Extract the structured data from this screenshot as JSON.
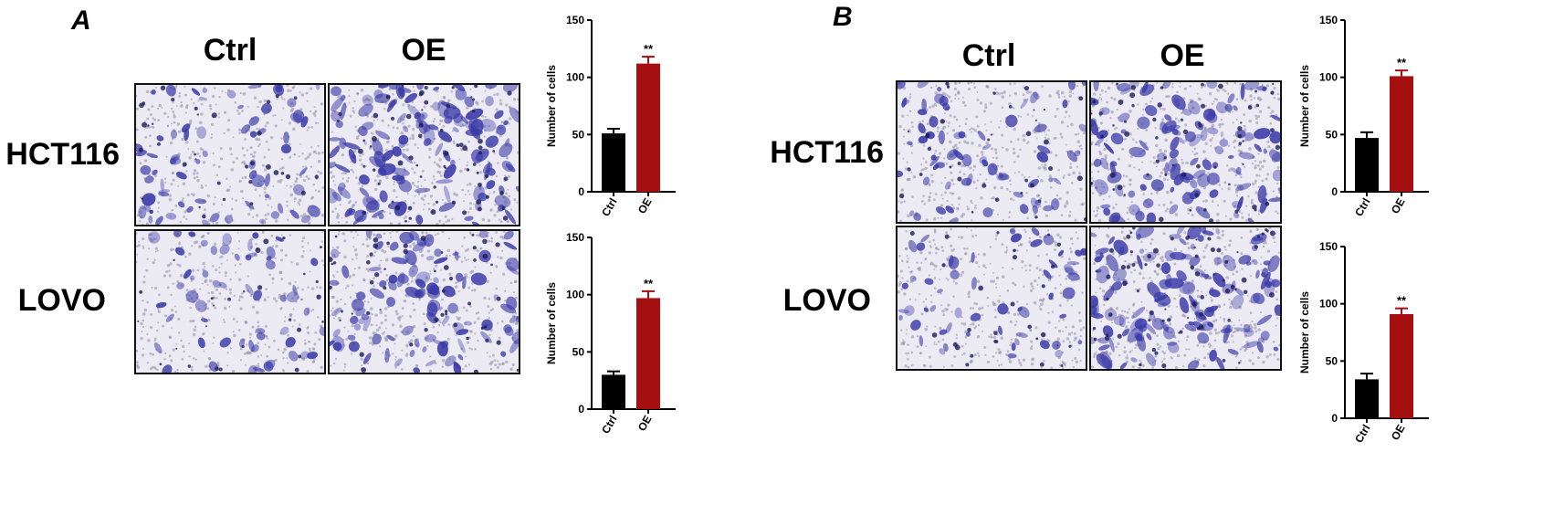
{
  "panels": [
    {
      "letter": "A",
      "col_labels": [
        "Ctrl",
        "OE"
      ],
      "row_labels": [
        "HCT116",
        "LOVO"
      ]
    },
    {
      "letter": "B",
      "col_labels": [
        "Ctrl",
        "OE"
      ],
      "row_labels": [
        "HCT116",
        "LOVO"
      ]
    }
  ],
  "micrographs": [
    {
      "panel": "A",
      "row": "HCT116",
      "col": "Ctrl",
      "stain_density": 0.35
    },
    {
      "panel": "A",
      "row": "HCT116",
      "col": "OE",
      "stain_density": 0.8
    },
    {
      "panel": "A",
      "row": "LOVO",
      "col": "Ctrl",
      "stain_density": 0.25
    },
    {
      "panel": "A",
      "row": "LOVO",
      "col": "OE",
      "stain_density": 0.6
    },
    {
      "panel": "B",
      "row": "HCT116",
      "col": "Ctrl",
      "stain_density": 0.35
    },
    {
      "panel": "B",
      "row": "HCT116",
      "col": "OE",
      "stain_density": 0.7
    },
    {
      "panel": "B",
      "row": "LOVO",
      "col": "Ctrl",
      "stain_density": 0.25
    },
    {
      "panel": "B",
      "row": "LOVO",
      "col": "OE",
      "stain_density": 0.85
    }
  ],
  "colors": {
    "ctrl_bar": "#000000",
    "oe_bar": "#a50f0f",
    "stain": "#3a3aa8",
    "background_field": "#eceaf3"
  },
  "chart_data": [
    {
      "type": "bar",
      "panel": "A",
      "row": "HCT116",
      "categories": [
        "Ctrl",
        "OE"
      ],
      "values": [
        51,
        112
      ],
      "errors": [
        4,
        6
      ],
      "significance": "**",
      "ylabel": "Number of cells",
      "ylim": [
        0,
        150
      ],
      "yticks": [
        0,
        50,
        100,
        150
      ]
    },
    {
      "type": "bar",
      "panel": "A",
      "row": "LOVO",
      "categories": [
        "Ctrl",
        "OE"
      ],
      "values": [
        30,
        97
      ],
      "errors": [
        3,
        6
      ],
      "significance": "**",
      "ylabel": "Number of cells",
      "ylim": [
        0,
        150
      ],
      "yticks": [
        0,
        50,
        100,
        150
      ]
    },
    {
      "type": "bar",
      "panel": "B",
      "row": "HCT116",
      "categories": [
        "Ctrl",
        "OE"
      ],
      "values": [
        47,
        101
      ],
      "errors": [
        5,
        5
      ],
      "significance": "**",
      "ylabel": "Number of cells",
      "ylim": [
        0,
        150
      ],
      "yticks": [
        0,
        50,
        100,
        150
      ]
    },
    {
      "type": "bar",
      "panel": "B",
      "row": "LOVO",
      "categories": [
        "Ctrl",
        "OE"
      ],
      "values": [
        34,
        91
      ],
      "errors": [
        5,
        5
      ],
      "significance": "**",
      "ylabel": "Number of cells",
      "ylim": [
        0,
        150
      ],
      "yticks": [
        0,
        50,
        100,
        150
      ]
    }
  ]
}
